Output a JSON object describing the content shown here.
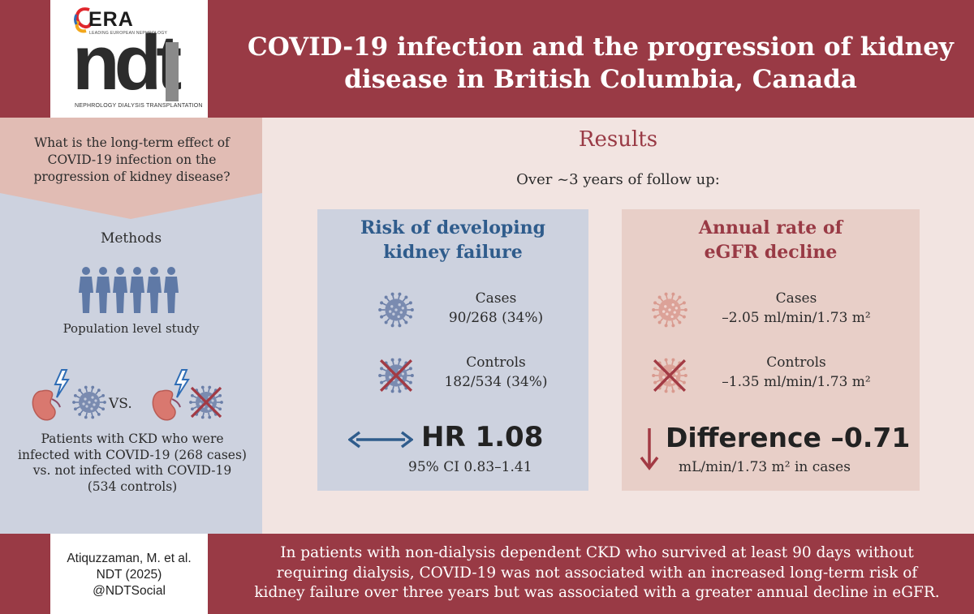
{
  "header": {
    "title_line1": "COVID-19 infection and the progression of kidney",
    "title_line2": "disease in British Columbia, Canada",
    "logo": {
      "era_text": "ERA",
      "era_tagline": "LEADING EUROPEAN NEPHROLOGY",
      "journal_mark": "ndt",
      "journal_subtitle": "NEPHROLOGY DIALYSIS TRANSPLANTATION"
    }
  },
  "left": {
    "question_line1": "What is the long-term effect of",
    "question_line2": "COVID-19 infection on the",
    "question_line3": "progression of kidney disease?",
    "methods_label": "Methods",
    "population_label": "Population level study",
    "vs_label": "VS.",
    "patients_line1": "Patients with CKD who were",
    "patients_line2": "infected with COVID-19 (268 cases)",
    "patients_line3": "vs. not infected with COVID-19",
    "patients_line4": "(534 controls)"
  },
  "results": {
    "heading": "Results",
    "followup": "Over ~3 years of follow up:",
    "kidney_failure": {
      "title_line1": "Risk of developing",
      "title_line2": "kidney failure",
      "cases_label": "Cases",
      "cases_value": "90/268 (34%)",
      "controls_label": "Controls",
      "controls_value": "182/534 (34%)",
      "stat": "HR 1.08",
      "ci": "95% CI 0.83–1.41"
    },
    "egfr": {
      "title_line1": "Annual rate of",
      "title_line2": "eGFR decline",
      "cases_label": "Cases",
      "cases_value": "–2.05 ml/min/1.73 m²",
      "controls_label": "Controls",
      "controls_value": "–1.35 ml/min/1.73 m²",
      "stat": "Difference –0.71",
      "stat_sub": "mL/min/1.73 m² in cases"
    }
  },
  "footer": {
    "citation_line1": "Atiquzzaman, M. et al.",
    "citation_line2": "NDT (2025)",
    "citation_line3": "@NDTSocial",
    "conclusion_line1": "In patients with non-dialysis dependent CKD who survived at least 90 days without",
    "conclusion_line2": "requiring dialysis, COVID-19 was not associated with an increased long-term risk of",
    "conclusion_line3": "kidney failure over three years but was associated with a greater annual decline in eGFR."
  },
  "colors": {
    "brand_red": "#993a45",
    "blue": "#2f5c8c",
    "virus_blue": "#6b7fa8",
    "virus_pink": "#d99a8f"
  },
  "icons": [
    "people-group-icon",
    "kidney-lightning-icon",
    "virus-icon",
    "virus-crossed-icon",
    "double-arrow-icon",
    "down-arrow-icon"
  ]
}
